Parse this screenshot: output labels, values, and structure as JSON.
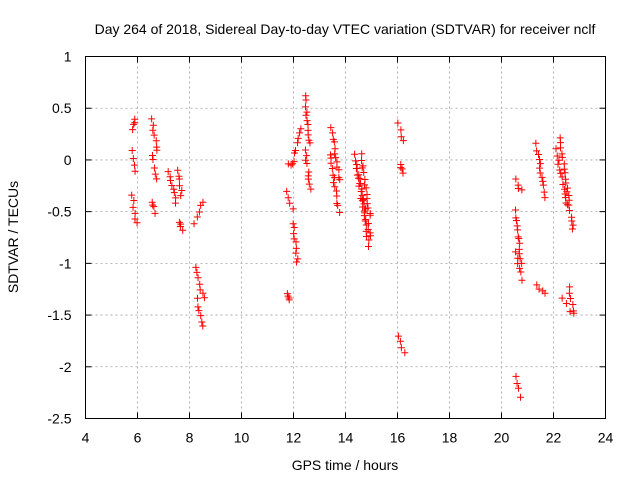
{
  "chart_data": {
    "type": "scatter",
    "title": "Day 264 of 2018, Sidereal Day-to-day VTEC variation (SDTVAR) for receiver nclf",
    "xlabel": "GPS time / hours",
    "ylabel": "SDTVAR / TECUs",
    "xlim": [
      4,
      24
    ],
    "ylim": [
      -2.5,
      1
    ],
    "xticks": [
      4,
      6,
      8,
      10,
      12,
      14,
      16,
      18,
      20,
      22,
      24
    ],
    "yticks": [
      -2.5,
      -2,
      -1.5,
      -1,
      -0.5,
      0,
      0.5,
      1
    ],
    "ytick_labels": [
      "-2.5",
      "-2",
      "-1.5",
      "-1",
      "-0.5",
      "0",
      "0.5",
      "1"
    ],
    "grid": true,
    "marker": "+",
    "color": "#ff0000",
    "segments": [
      {
        "x0": 5.8,
        "x1": 5.92,
        "y0": 0.3,
        "y1": 0.38
      },
      {
        "x0": 5.78,
        "x1": 5.9,
        "y0": 0.08,
        "y1": -0.1
      },
      {
        "x0": 5.8,
        "x1": 5.95,
        "y0": -0.35,
        "y1": -0.62
      },
      {
        "x0": 6.55,
        "x1": 6.75,
        "y0": 0.4,
        "y1": 0.08
      },
      {
        "x0": 6.55,
        "x1": 6.72,
        "y0": 0.05,
        "y1": -0.18
      },
      {
        "x0": 6.55,
        "x1": 6.68,
        "y0": -0.4,
        "y1": -0.5
      },
      {
        "x0": 7.2,
        "x1": 7.5,
        "y0": -0.1,
        "y1": -0.42
      },
      {
        "x0": 7.55,
        "x1": 7.7,
        "y0": -0.1,
        "y1": -0.35
      },
      {
        "x0": 7.6,
        "x1": 7.7,
        "y0": -0.6,
        "y1": -0.68
      },
      {
        "x0": 8.2,
        "x1": 8.55,
        "y0": -0.62,
        "y1": -0.4
      },
      {
        "x0": 8.25,
        "x1": 8.55,
        "y0": -1.05,
        "y1": -1.35
      },
      {
        "x0": 8.3,
        "x1": 8.5,
        "y0": -1.35,
        "y1": -1.62
      },
      {
        "x0": 11.75,
        "x1": 11.85,
        "y0": -1.28,
        "y1": -1.36
      },
      {
        "x0": 11.75,
        "x1": 11.95,
        "y0": -0.3,
        "y1": -0.48
      },
      {
        "x0": 11.8,
        "x1": 12.05,
        "y0": -0.05,
        "y1": -0.03
      },
      {
        "x0": 12.0,
        "x1": 12.15,
        "y0": -0.6,
        "y1": -1.0
      },
      {
        "x0": 12.05,
        "x1": 12.3,
        "y0": 0.05,
        "y1": 0.3
      },
      {
        "x0": 12.45,
        "x1": 12.6,
        "y0": 0.62,
        "y1": 0.15
      },
      {
        "x0": 12.45,
        "x1": 12.65,
        "y0": 0.1,
        "y1": -0.3
      },
      {
        "x0": 13.4,
        "x1": 13.75,
        "y0": 0.05,
        "y1": -0.5
      },
      {
        "x0": 13.45,
        "x1": 13.8,
        "y0": 0.3,
        "y1": -0.2
      },
      {
        "x0": 14.35,
        "x1": 14.9,
        "y0": 0.05,
        "y1": -0.82
      },
      {
        "x0": 14.45,
        "x1": 14.95,
        "y0": -0.1,
        "y1": -0.75
      },
      {
        "x0": 14.6,
        "x1": 14.95,
        "y0": 0.05,
        "y1": -0.55
      },
      {
        "x0": 16.05,
        "x1": 16.25,
        "y0": 0.35,
        "y1": 0.18
      },
      {
        "x0": 16.1,
        "x1": 16.25,
        "y0": -0.05,
        "y1": -0.12
      },
      {
        "x0": 16.05,
        "x1": 16.25,
        "y0": -1.7,
        "y1": -1.85
      },
      {
        "x0": 20.55,
        "x1": 20.75,
        "y0": -0.2,
        "y1": -0.3
      },
      {
        "x0": 20.55,
        "x1": 20.75,
        "y0": -0.5,
        "y1": -1.0
      },
      {
        "x0": 20.55,
        "x1": 20.75,
        "y0": -0.9,
        "y1": -1.15
      },
      {
        "x0": 20.55,
        "x1": 20.75,
        "y0": -2.1,
        "y1": -2.28
      },
      {
        "x0": 21.35,
        "x1": 21.65,
        "y0": 0.15,
        "y1": -0.35
      },
      {
        "x0": 21.35,
        "x1": 21.65,
        "y0": -1.2,
        "y1": -1.3
      },
      {
        "x0": 22.1,
        "x1": 22.55,
        "y0": 0.1,
        "y1": -0.45
      },
      {
        "x0": 22.25,
        "x1": 22.75,
        "y0": 0.2,
        "y1": -0.68
      },
      {
        "x0": 22.35,
        "x1": 22.75,
        "y0": -1.35,
        "y1": -1.5
      },
      {
        "x0": 22.6,
        "x1": 22.75,
        "y0": -1.22,
        "y1": -1.45
      }
    ]
  }
}
